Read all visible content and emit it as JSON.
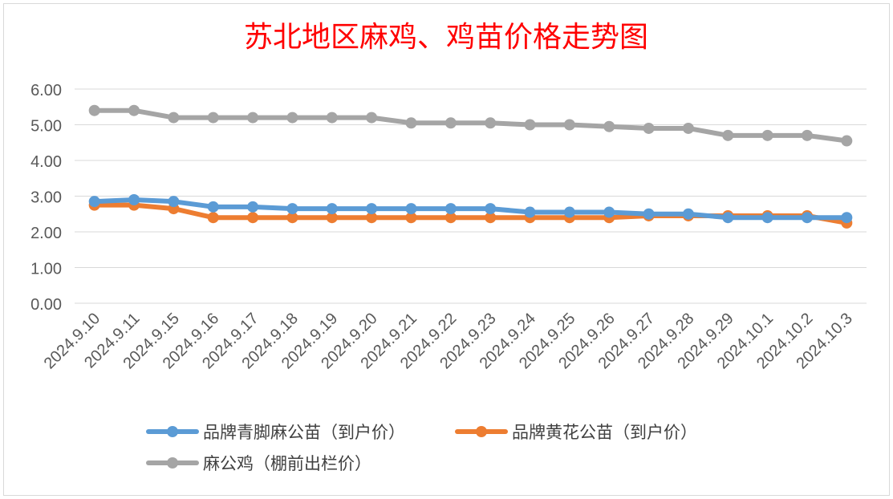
{
  "chart_data": {
    "type": "line",
    "title": "苏北地区麻鸡、鸡苗价格走势图",
    "categories": [
      "2024.9.10",
      "2024.9.11",
      "2024.9.15",
      "2024.9.16",
      "2024.9.17",
      "2024.9.18",
      "2024.9.19",
      "2024.9.20",
      "2024.9.21",
      "2024.9.22",
      "2024.9.23",
      "2024.9.24",
      "2024.9.25",
      "2024.9.26",
      "2024.9.27",
      "2024.9.28",
      "2024.9.29",
      "2024.10.1",
      "2024.10.2",
      "2024.10.3"
    ],
    "ylim": [
      0,
      6
    ],
    "yticks": [
      "0.00",
      "1.00",
      "2.00",
      "3.00",
      "4.00",
      "5.00",
      "6.00"
    ],
    "grid": true,
    "legend_position": "bottom",
    "series": [
      {
        "name": "品牌青脚麻公苗（到户价）",
        "color": "#5b9bd5",
        "values": [
          2.85,
          2.9,
          2.85,
          2.7,
          2.7,
          2.65,
          2.65,
          2.65,
          2.65,
          2.65,
          2.65,
          2.55,
          2.55,
          2.55,
          2.5,
          2.5,
          2.4,
          2.4,
          2.4,
          2.4
        ]
      },
      {
        "name": "品牌黄花公苗（到户价）",
        "color": "#ed7d31",
        "values": [
          2.75,
          2.75,
          2.65,
          2.4,
          2.4,
          2.4,
          2.4,
          2.4,
          2.4,
          2.4,
          2.4,
          2.4,
          2.4,
          2.4,
          2.45,
          2.45,
          2.45,
          2.45,
          2.45,
          2.25
        ]
      },
      {
        "name": "麻公鸡（棚前出栏价）",
        "color": "#a5a5a5",
        "values": [
          5.4,
          5.4,
          5.2,
          5.2,
          5.2,
          5.2,
          5.2,
          5.2,
          5.05,
          5.05,
          5.05,
          5.0,
          5.0,
          4.95,
          4.9,
          4.9,
          4.7,
          4.7,
          4.7,
          4.55
        ]
      }
    ]
  }
}
